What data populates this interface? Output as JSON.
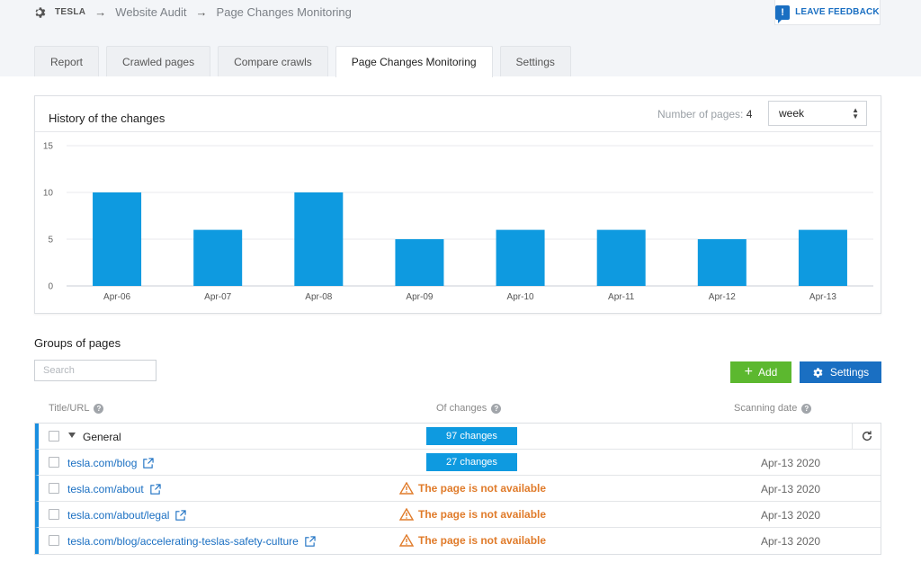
{
  "breadcrumb": {
    "project": "TESLA",
    "items": [
      "Website Audit",
      "Page Changes Monitoring"
    ]
  },
  "feedback": {
    "label": "LEAVE FEEDBACK",
    "icon": "feedback-icon"
  },
  "tabs": [
    {
      "label": "Report",
      "active": false
    },
    {
      "label": "Crawled pages",
      "active": false
    },
    {
      "label": "Compare crawls",
      "active": false
    },
    {
      "label": "Page Changes Monitoring",
      "active": true
    },
    {
      "label": "Settings",
      "active": false
    }
  ],
  "history": {
    "title": "History of the changes",
    "num_pages_label": "Number of pages:",
    "num_pages": "4",
    "period": "week"
  },
  "chart_data": {
    "type": "bar",
    "categories": [
      "Apr-06",
      "Apr-07",
      "Apr-08",
      "Apr-09",
      "Apr-10",
      "Apr-11",
      "Apr-12",
      "Apr-13"
    ],
    "values": [
      10,
      6,
      10,
      5,
      6,
      6,
      5,
      6
    ],
    "yticks": [
      0,
      5,
      10,
      15
    ],
    "ylim": [
      0,
      15
    ],
    "grid": true,
    "color": "#0e9ae0"
  },
  "groups": {
    "title": "Groups of pages",
    "search_placeholder": "Search",
    "add_label": "Add",
    "settings_label": "Settings",
    "columns": {
      "title": "Title/URL",
      "changes": "Of changes",
      "date": "Scanning date"
    },
    "group_name": "General",
    "group_changes": "97 changes",
    "rows": [
      {
        "url": "tesla.com/blog",
        "status": "27 changes",
        "date": "Apr-13 2020"
      },
      {
        "url": "tesla.com/about",
        "status": "The page is not available",
        "date": "Apr-13 2020"
      },
      {
        "url": "tesla.com/about/legal",
        "status": "The page is not available",
        "date": "Apr-13 2020"
      },
      {
        "url": "tesla.com/blog/accelerating-teslas-safety-culture",
        "status": "The page is not available",
        "date": "Apr-13 2020"
      }
    ]
  },
  "colors": {
    "accent": "#1a6fc2",
    "add": "#5cb82f",
    "warning": "#e07b2a",
    "bar": "#0e9ae0"
  }
}
